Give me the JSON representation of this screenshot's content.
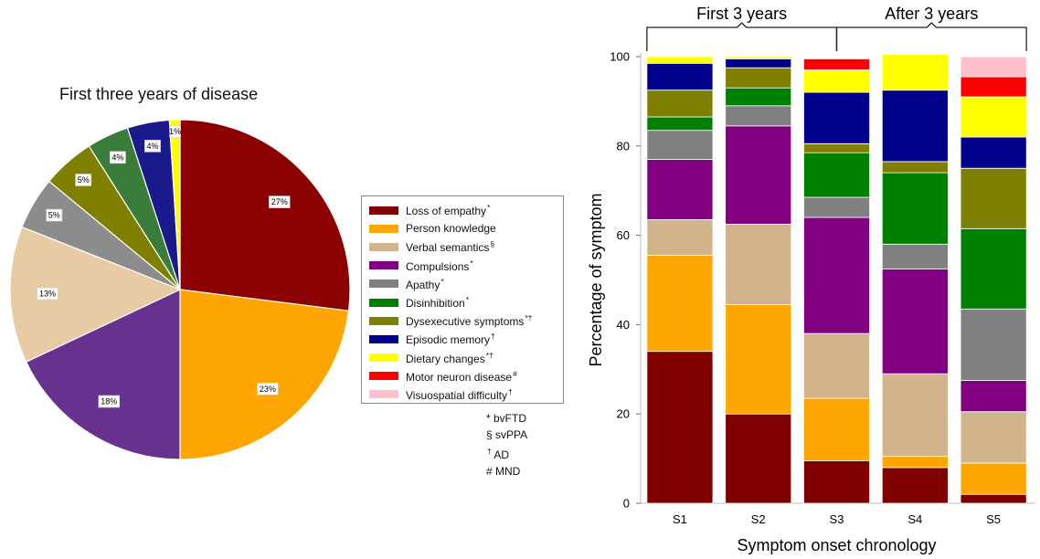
{
  "chart_data": [
    {
      "type": "pie",
      "title": "First three years of disease",
      "start_angle_deg": 0,
      "direction": "clockwise",
      "slices": [
        {
          "label": "Loss of empathy",
          "marker": "*",
          "value": 27,
          "label_text": "27%",
          "color": "#8b0000"
        },
        {
          "label": "Person knowledge",
          "marker": "",
          "value": 23,
          "label_text": "23%",
          "color": "#ffa500"
        },
        {
          "label": "Compulsions",
          "marker": "*",
          "value": 18,
          "label_text": "18%",
          "color": "#66318f"
        },
        {
          "label": "Verbal semantics",
          "marker": "§",
          "value": 13,
          "label_text": "13%",
          "color": "#e6cba5"
        },
        {
          "label": "Apathy",
          "marker": "*",
          "value": 5,
          "label_text": "5%",
          "color": "#8c8c8c"
        },
        {
          "label": "Dysexecutive symptoms",
          "marker": "*†",
          "value": 5,
          "label_text": "5%",
          "color": "#808000"
        },
        {
          "label": "Disinhibition",
          "marker": "*",
          "value": 4,
          "label_text": "4%",
          "color": "#3a7d3a"
        },
        {
          "label": "Episodic memory",
          "marker": "†",
          "value": 4,
          "label_text": "4%",
          "color": "#1a1a8c"
        },
        {
          "label": "Dietary changes",
          "marker": "*†",
          "value": 1,
          "label_text": "1%",
          "color": "#ffff00"
        }
      ]
    },
    {
      "type": "bar",
      "stacked": true,
      "categories": [
        "S1",
        "S2",
        "S3",
        "S4",
        "S5"
      ],
      "xlabel": "Symptom onset chronology",
      "ylabel": "Percentage of symptom",
      "ylim": [
        0,
        100
      ],
      "yticks": [
        0,
        20,
        40,
        60,
        80,
        100
      ],
      "grid": false,
      "groups": [
        {
          "label": "First 3 years",
          "categories": [
            "S1",
            "S2",
            "S3"
          ]
        },
        {
          "label": "After 3 years",
          "categories": [
            "S3",
            "S4",
            "S5"
          ]
        }
      ],
      "series": [
        {
          "name": "Loss of empathy",
          "color": "#800000",
          "values": [
            34,
            20,
            9.5,
            8,
            2
          ]
        },
        {
          "name": "Person knowledge",
          "color": "#ffa500",
          "values": [
            21.5,
            24.5,
            14,
            2.5,
            7
          ]
        },
        {
          "name": "Verbal semantics",
          "color": "#d2b48c",
          "values": [
            8,
            18,
            14.5,
            18.5,
            11.5
          ]
        },
        {
          "name": "Compulsions",
          "color": "#800080",
          "values": [
            13.5,
            22,
            26,
            23.5,
            7
          ]
        },
        {
          "name": "Apathy",
          "color": "#808080",
          "values": [
            6.5,
            4.5,
            4.5,
            5.5,
            16
          ]
        },
        {
          "name": "Disinhibition",
          "color": "#008000",
          "values": [
            3,
            4,
            10,
            16,
            18
          ]
        },
        {
          "name": "Dysexecutive symptoms",
          "color": "#808000",
          "values": [
            6,
            4.5,
            2,
            2.5,
            13.5
          ]
        },
        {
          "name": "Episodic memory",
          "color": "#00008b",
          "values": [
            6,
            2,
            11.5,
            16,
            7
          ]
        },
        {
          "name": "Dietary changes",
          "color": "#ffff00",
          "values": [
            1.5,
            0.5,
            5,
            8,
            9
          ]
        },
        {
          "name": "Motor neuron disease",
          "color": "#ff0000",
          "values": [
            0,
            0,
            2.5,
            0,
            4.5
          ]
        },
        {
          "name": "Visuospatial difficulty",
          "color": "#ffc0cb",
          "values": [
            0,
            0,
            0,
            0,
            4.5
          ]
        }
      ]
    }
  ],
  "legend": [
    {
      "name": "Loss of empathy",
      "marker": "*",
      "color": "#800000"
    },
    {
      "name": "Person knowledge",
      "marker": "",
      "color": "#ffa500"
    },
    {
      "name": "Verbal semantics",
      "marker": "§",
      "color": "#d2b48c"
    },
    {
      "name": "Compulsions",
      "marker": "*",
      "color": "#800080"
    },
    {
      "name": "Apathy",
      "marker": "*",
      "color": "#808080"
    },
    {
      "name": "Disinhibition",
      "marker": "*",
      "color": "#008000"
    },
    {
      "name": "Dysexecutive symptoms",
      "marker": "*†",
      "color": "#808000"
    },
    {
      "name": "Episodic memory",
      "marker": "†",
      "color": "#00008b"
    },
    {
      "name": "Dietary changes",
      "marker": "*†",
      "color": "#ffff00"
    },
    {
      "name": "Motor neuron disease",
      "marker": "#",
      "color": "#ff0000"
    },
    {
      "name": "Visuospatial difficulty",
      "marker": "†",
      "color": "#ffc0cb"
    }
  ],
  "notes": [
    {
      "symbol": "*",
      "text": "bvFTD"
    },
    {
      "symbol": "§",
      "text": "svPPA"
    },
    {
      "symbol": "†",
      "text": "AD"
    },
    {
      "symbol": "#",
      "text": "MND"
    }
  ]
}
